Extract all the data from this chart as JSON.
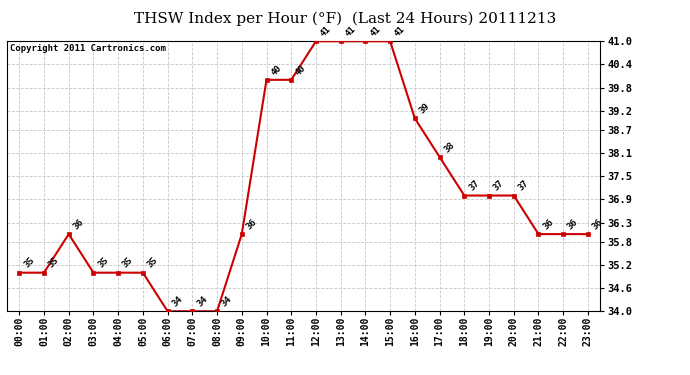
{
  "title": "THSW Index per Hour (°F)  (Last 24 Hours) 20111213",
  "copyright": "Copyright 2011 Cartronics.com",
  "hours": [
    "00:00",
    "01:00",
    "02:00",
    "03:00",
    "04:00",
    "05:00",
    "06:00",
    "07:00",
    "08:00",
    "09:00",
    "10:00",
    "11:00",
    "12:00",
    "13:00",
    "14:00",
    "15:00",
    "16:00",
    "17:00",
    "18:00",
    "19:00",
    "20:00",
    "21:00",
    "22:00",
    "23:00"
  ],
  "values": [
    35,
    35,
    36,
    35,
    35,
    35,
    34,
    34,
    34,
    36,
    40,
    40,
    41,
    41,
    41,
    41,
    39,
    38,
    37,
    37,
    37,
    36,
    36,
    36
  ],
  "line_color": "#cc0000",
  "marker_color": "#cc0000",
  "bg_color": "#ffffff",
  "grid_color": "#c8c8c8",
  "ymin": 34.0,
  "ymax": 41.0,
  "yticks": [
    34.0,
    34.6,
    35.2,
    35.8,
    36.3,
    36.9,
    37.5,
    38.1,
    38.7,
    39.2,
    39.8,
    40.4,
    41.0
  ],
  "title_fontsize": 11,
  "label_fontsize": 6.5,
  "copyright_fontsize": 6.5,
  "xtick_fontsize": 7,
  "ytick_fontsize": 7.5
}
